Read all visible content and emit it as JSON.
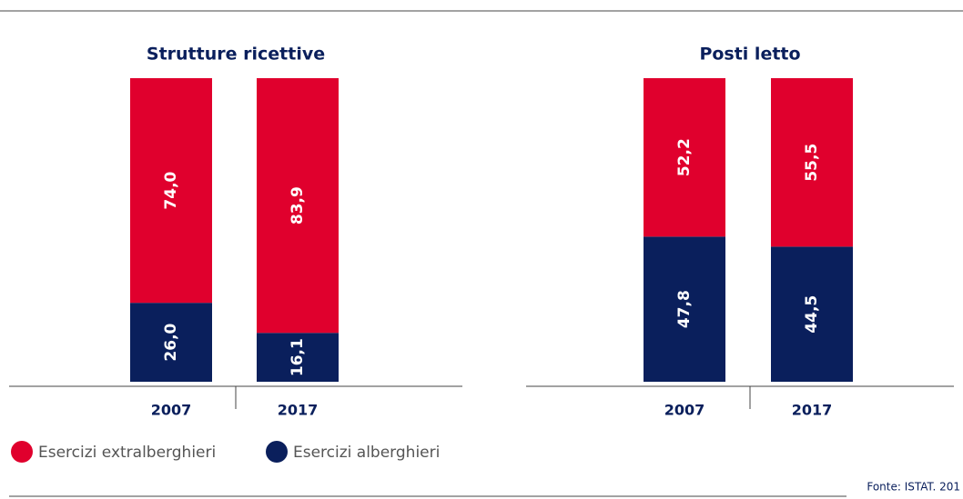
{
  "chart_data": [
    {
      "type": "bar",
      "stacked": true,
      "title": "Strutture ricettive",
      "categories": [
        "2007",
        "2017"
      ],
      "ylim": [
        0,
        100
      ],
      "series": [
        {
          "name": "Esercizi alberghieri",
          "color": "#0a1f5c",
          "values": [
            26.0,
            16.1
          ],
          "value_labels": [
            "26,0",
            "16,1"
          ]
        },
        {
          "name": "Esercizi extralberghieri",
          "color": "#e0002d",
          "values": [
            74.0,
            83.9
          ],
          "value_labels": [
            "74,0",
            "83,9"
          ]
        }
      ]
    },
    {
      "type": "bar",
      "stacked": true,
      "title": "Posti letto",
      "categories": [
        "2007",
        "2017"
      ],
      "ylim": [
        0,
        100
      ],
      "series": [
        {
          "color": "#0a1f5c",
          "values": [
            47.8,
            44.5
          ],
          "value_labels": [
            "47,8",
            "44,5"
          ]
        },
        {
          "color": "#e0002d",
          "values": [
            52.2,
            55.5
          ],
          "value_labels": [
            "52,2",
            "55,5"
          ]
        }
      ]
    }
  ],
  "source": "Fonte: ISTAT. 201"
}
